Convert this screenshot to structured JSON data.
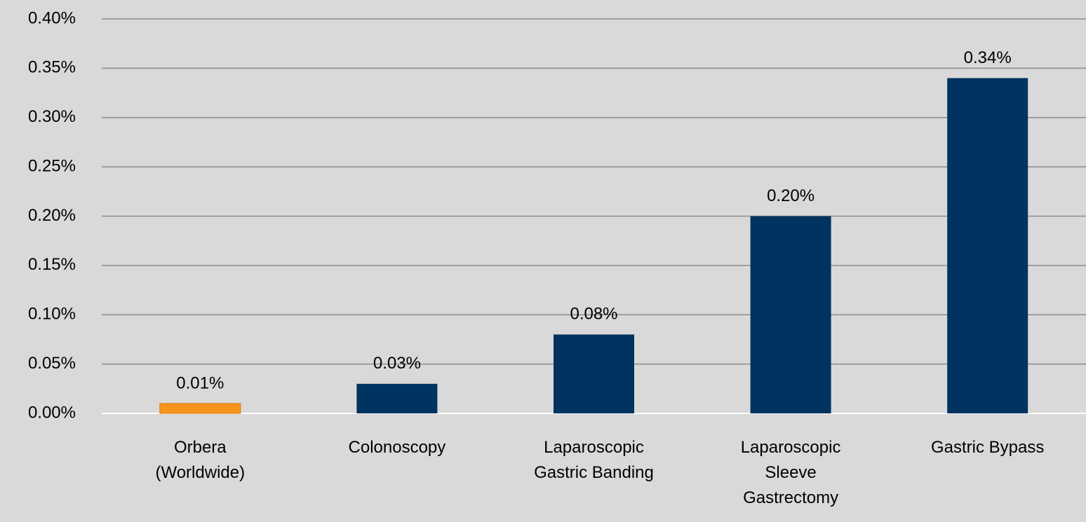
{
  "chart_data": {
    "type": "bar",
    "categories": [
      "Orbera\n(Worldwide)",
      "Colonoscopy",
      "Laparoscopic\nGastric Banding",
      "Laparoscopic\nSleeve\nGastrectomy",
      "Gastric Bypass"
    ],
    "values": [
      0.01,
      0.03,
      0.08,
      0.2,
      0.34
    ],
    "value_labels": [
      "0.01%",
      "0.03%",
      "0.08%",
      "0.20%",
      "0.34%"
    ],
    "colors": [
      "#f7941d",
      "#003360",
      "#003360",
      "#003360",
      "#003360"
    ],
    "ylim": [
      0,
      0.4
    ],
    "yticks": [
      {
        "value": 0,
        "label": "0.00%"
      },
      {
        "value": 0.05,
        "label": "0.05%"
      },
      {
        "value": 0.1,
        "label": "0.10%"
      },
      {
        "value": 0.15,
        "label": "0.15%"
      },
      {
        "value": 0.2,
        "label": "0.20%"
      },
      {
        "value": 0.25,
        "label": "0.25%"
      },
      {
        "value": 0.3,
        "label": "0.30%"
      },
      {
        "value": 0.35,
        "label": "0.35%"
      },
      {
        "value": 0.4,
        "label": "0.40%"
      }
    ],
    "grid": true
  }
}
